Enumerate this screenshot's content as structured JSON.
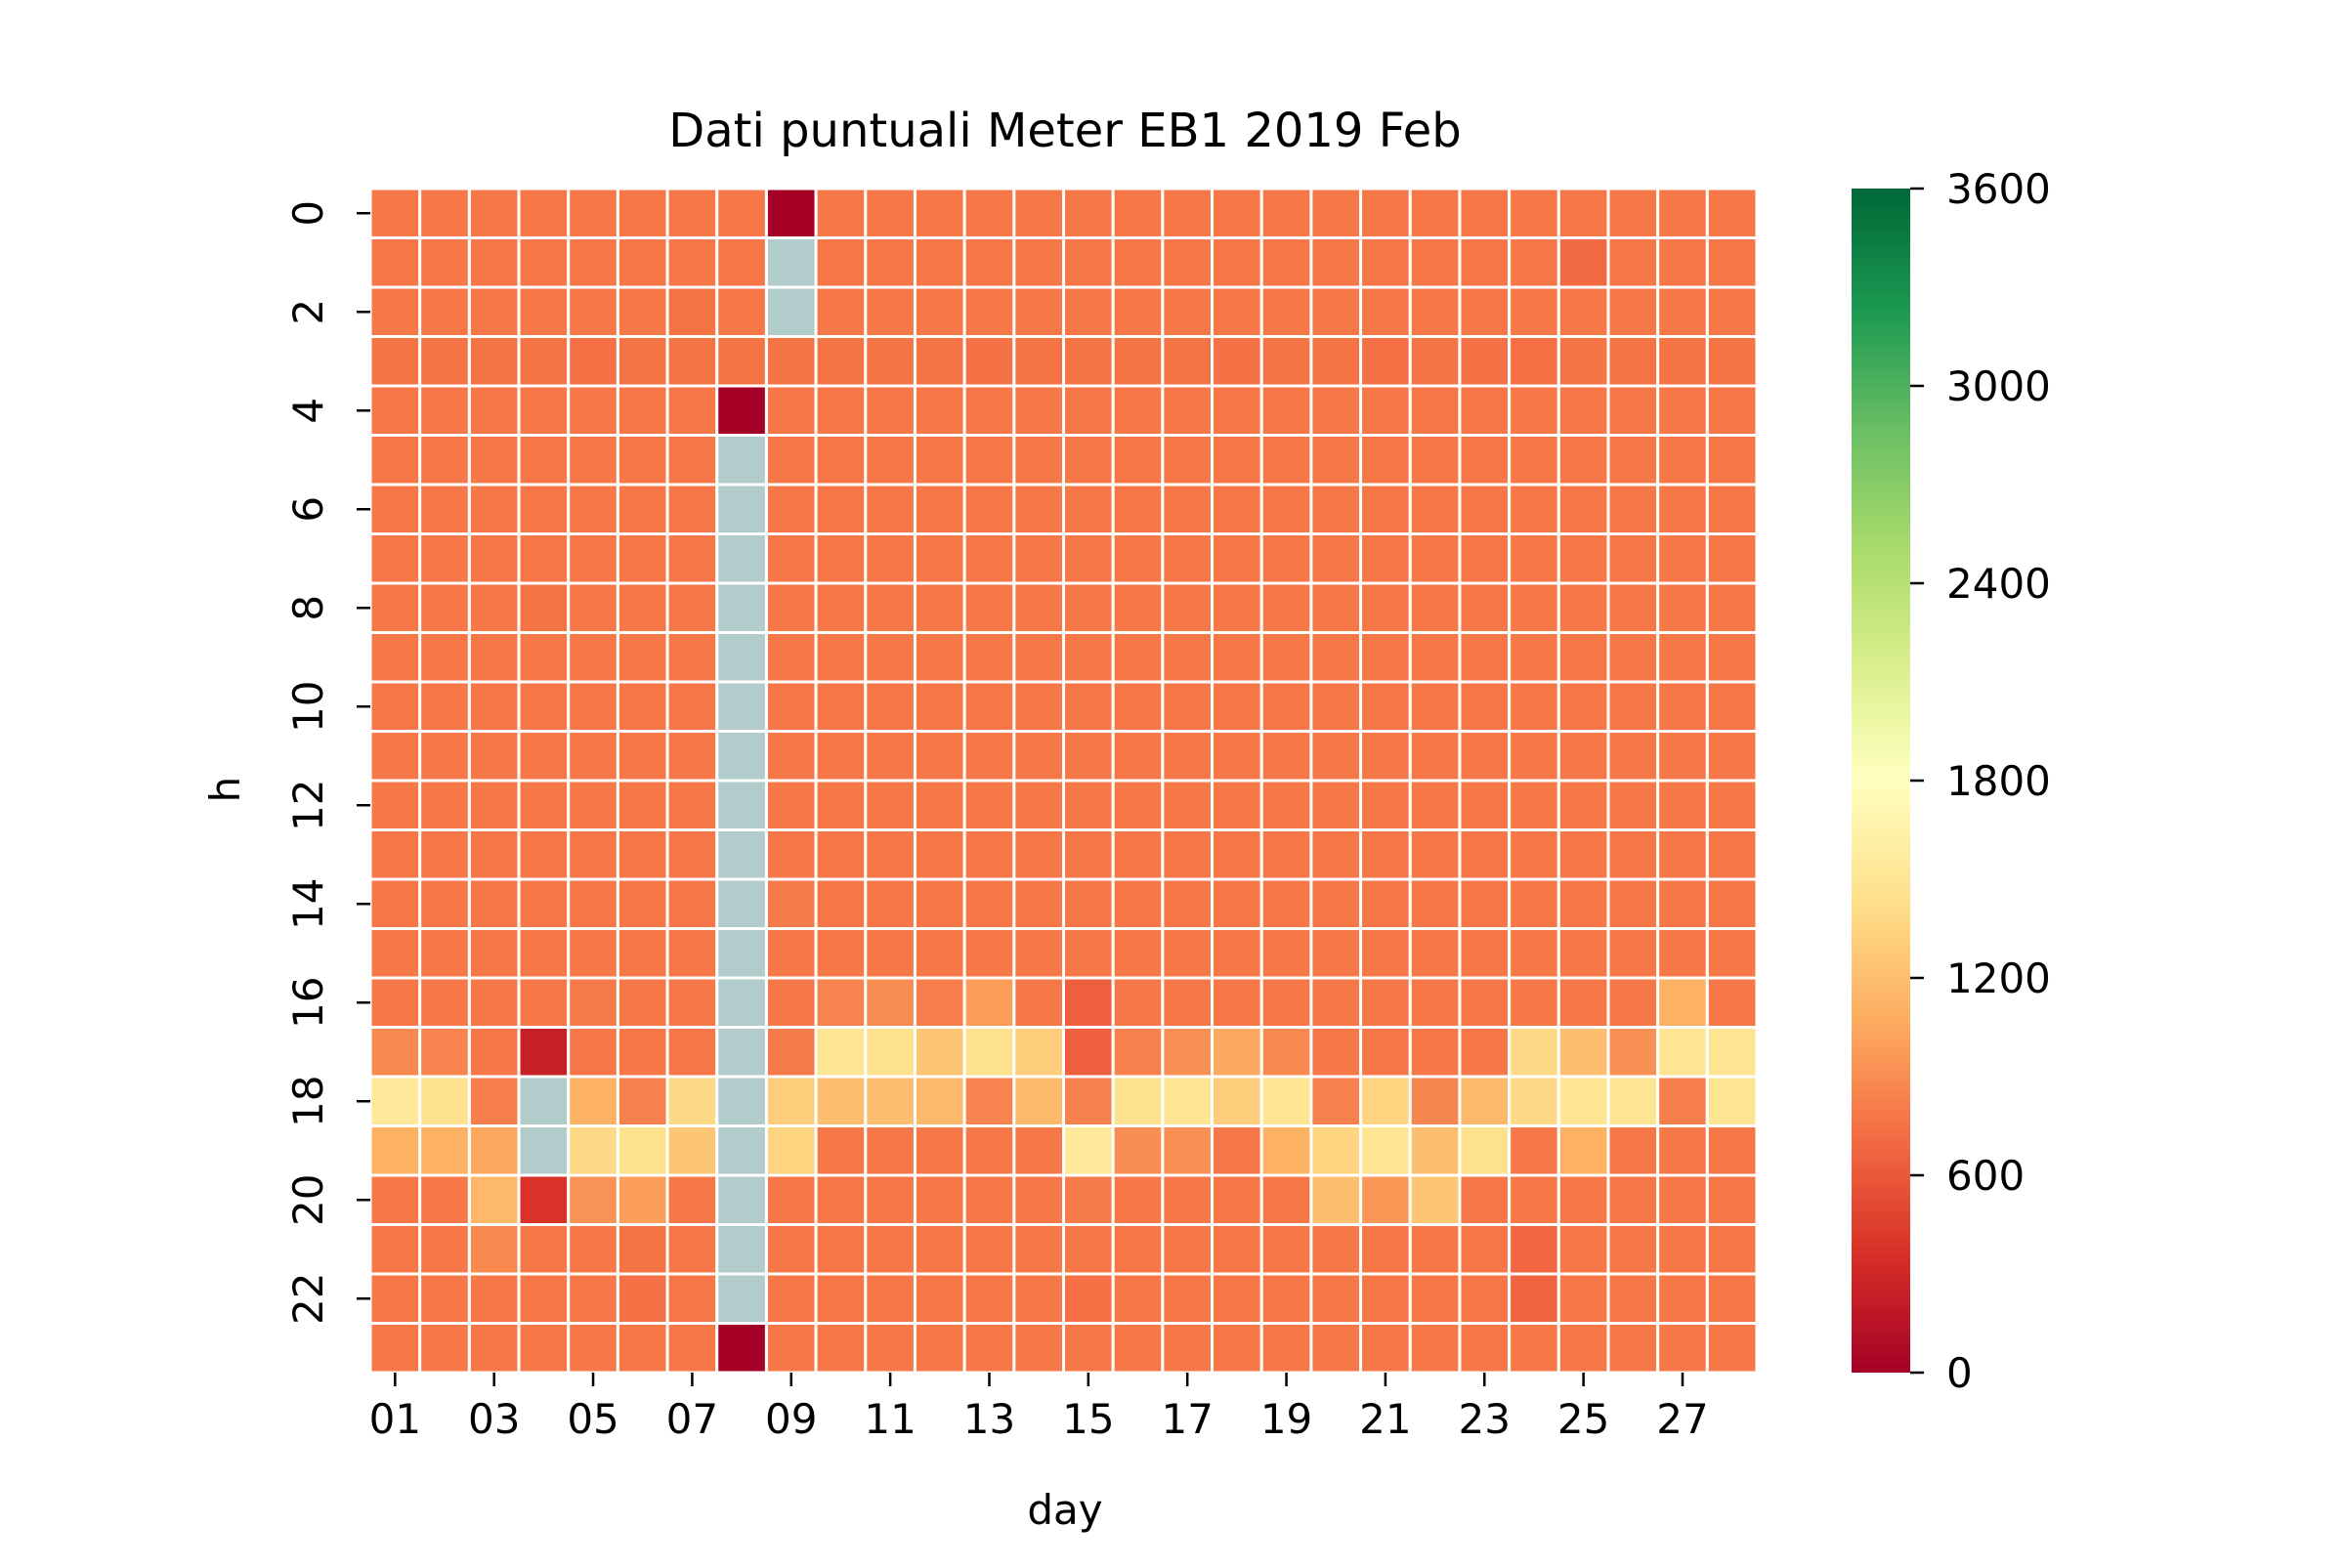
{
  "chart_data": {
    "type": "heatmap",
    "title": "Dati puntuali Meter EB1 2019 Feb",
    "xlabel": "day",
    "ylabel": "h",
    "x_categories": [
      "01",
      "02",
      "03",
      "04",
      "05",
      "06",
      "07",
      "08",
      "09",
      "10",
      "11",
      "12",
      "13",
      "14",
      "15",
      "16",
      "17",
      "18",
      "19",
      "20",
      "21",
      "22",
      "23",
      "24",
      "25",
      "26",
      "27",
      "28"
    ],
    "x_tick_labels": [
      "01",
      "03",
      "05",
      "07",
      "09",
      "11",
      "13",
      "15",
      "17",
      "19",
      "21",
      "23",
      "25",
      "27"
    ],
    "y_categories": [
      0,
      1,
      2,
      3,
      4,
      5,
      6,
      7,
      8,
      9,
      10,
      11,
      12,
      13,
      14,
      15,
      16,
      17,
      18,
      19,
      20,
      21,
      22,
      23
    ],
    "y_tick_labels": [
      "0",
      "2",
      "4",
      "6",
      "8",
      "10",
      "12",
      "14",
      "16",
      "18",
      "20",
      "22"
    ],
    "colorbar": {
      "colormap": "RdYlGn",
      "vmin": 0,
      "vmax": 3600,
      "ticks": [
        "0",
        "600",
        "1200",
        "1800",
        "2400",
        "3000",
        "3600"
      ]
    },
    "missing_color": "#b2cbcb",
    "grid_line_color": "#ffffff",
    "values": [
      [
        780,
        780,
        780,
        780,
        780,
        780,
        780,
        780,
        0,
        780,
        780,
        780,
        780,
        780,
        780,
        780,
        780,
        780,
        780,
        780,
        780,
        780,
        780,
        780,
        780,
        780,
        780,
        780
      ],
      [
        780,
        780,
        780,
        780,
        780,
        780,
        780,
        780,
        null,
        780,
        780,
        780,
        780,
        780,
        780,
        780,
        780,
        780,
        780,
        780,
        780,
        780,
        780,
        780,
        700,
        780,
        780,
        780
      ],
      [
        780,
        780,
        780,
        780,
        780,
        780,
        760,
        780,
        null,
        780,
        780,
        780,
        780,
        780,
        780,
        780,
        780,
        780,
        780,
        780,
        780,
        780,
        780,
        780,
        780,
        780,
        780,
        780
      ],
      [
        760,
        760,
        760,
        760,
        740,
        760,
        760,
        760,
        760,
        760,
        760,
        760,
        750,
        760,
        760,
        760,
        760,
        750,
        760,
        760,
        740,
        760,
        750,
        730,
        760,
        760,
        760,
        760
      ],
      [
        780,
        780,
        780,
        780,
        780,
        780,
        780,
        0,
        780,
        780,
        780,
        780,
        780,
        780,
        770,
        780,
        780,
        780,
        780,
        780,
        780,
        770,
        780,
        780,
        780,
        780,
        780,
        780
      ],
      [
        780,
        780,
        780,
        780,
        780,
        780,
        780,
        null,
        780,
        780,
        780,
        780,
        780,
        780,
        780,
        780,
        780,
        780,
        780,
        780,
        780,
        780,
        780,
        780,
        780,
        780,
        780,
        780
      ],
      [
        780,
        780,
        780,
        780,
        780,
        780,
        780,
        null,
        780,
        780,
        780,
        780,
        780,
        780,
        780,
        780,
        780,
        780,
        780,
        780,
        780,
        780,
        780,
        780,
        780,
        780,
        780,
        780
      ],
      [
        780,
        780,
        780,
        770,
        780,
        780,
        780,
        null,
        780,
        780,
        780,
        780,
        780,
        780,
        780,
        780,
        780,
        780,
        780,
        780,
        780,
        780,
        780,
        780,
        780,
        780,
        780,
        780
      ],
      [
        780,
        780,
        780,
        760,
        780,
        780,
        780,
        null,
        780,
        780,
        780,
        780,
        780,
        780,
        780,
        780,
        780,
        780,
        780,
        780,
        780,
        780,
        780,
        780,
        780,
        780,
        780,
        780
      ],
      [
        780,
        780,
        780,
        780,
        780,
        780,
        780,
        null,
        780,
        780,
        780,
        780,
        780,
        780,
        780,
        780,
        780,
        780,
        780,
        780,
        780,
        780,
        780,
        780,
        770,
        780,
        780,
        780
      ],
      [
        780,
        780,
        780,
        780,
        780,
        780,
        780,
        null,
        780,
        780,
        780,
        780,
        780,
        780,
        780,
        780,
        780,
        780,
        780,
        780,
        780,
        780,
        780,
        780,
        780,
        780,
        780,
        780
      ],
      [
        780,
        780,
        780,
        780,
        780,
        780,
        780,
        null,
        780,
        780,
        780,
        780,
        780,
        780,
        780,
        780,
        780,
        780,
        780,
        780,
        780,
        780,
        780,
        780,
        780,
        780,
        780,
        780
      ],
      [
        780,
        780,
        780,
        780,
        780,
        780,
        780,
        null,
        780,
        780,
        780,
        780,
        780,
        780,
        780,
        780,
        780,
        780,
        780,
        780,
        780,
        780,
        780,
        780,
        780,
        780,
        780,
        780
      ],
      [
        780,
        780,
        780,
        780,
        780,
        780,
        780,
        null,
        780,
        780,
        780,
        780,
        780,
        780,
        780,
        780,
        780,
        780,
        780,
        780,
        780,
        780,
        780,
        780,
        780,
        780,
        780,
        780
      ],
      [
        780,
        780,
        780,
        780,
        780,
        780,
        780,
        null,
        800,
        780,
        780,
        780,
        780,
        780,
        780,
        780,
        780,
        780,
        780,
        780,
        780,
        780,
        780,
        780,
        780,
        780,
        780,
        780
      ],
      [
        780,
        780,
        780,
        780,
        780,
        780,
        780,
        null,
        780,
        780,
        780,
        780,
        780,
        780,
        780,
        780,
        780,
        780,
        780,
        780,
        780,
        780,
        780,
        780,
        780,
        780,
        780,
        780
      ],
      [
        780,
        780,
        780,
        780,
        790,
        780,
        780,
        null,
        780,
        850,
        900,
        820,
        980,
        780,
        640,
        780,
        780,
        780,
        780,
        780,
        780,
        780,
        780,
        780,
        780,
        780,
        1100,
        780
      ],
      [
        880,
        850,
        780,
        240,
        780,
        780,
        780,
        null,
        800,
        1500,
        1450,
        1250,
        1450,
        1300,
        640,
        830,
        920,
        1050,
        880,
        780,
        780,
        780,
        780,
        1400,
        1200,
        920,
        1500,
        1500
      ],
      [
        1550,
        1450,
        820,
        null,
        1100,
        830,
        1400,
        null,
        1300,
        1200,
        1200,
        1150,
        850,
        1150,
        830,
        1450,
        1500,
        1300,
        1500,
        830,
        1350,
        860,
        1150,
        1400,
        1500,
        1500,
        820,
        1500
      ],
      [
        1100,
        1100,
        1050,
        null,
        1400,
        1450,
        1250,
        null,
        1350,
        780,
        780,
        780,
        780,
        780,
        1550,
        900,
        920,
        780,
        1100,
        1350,
        1500,
        1200,
        1450,
        780,
        1100,
        780,
        780,
        780
      ],
      [
        780,
        780,
        1150,
        380,
        930,
        990,
        780,
        null,
        780,
        780,
        780,
        780,
        780,
        780,
        800,
        780,
        780,
        780,
        780,
        1200,
        950,
        1250,
        780,
        780,
        780,
        780,
        780,
        780
      ],
      [
        780,
        780,
        880,
        780,
        780,
        760,
        780,
        null,
        780,
        780,
        780,
        780,
        780,
        780,
        780,
        770,
        780,
        780,
        780,
        780,
        780,
        780,
        780,
        680,
        780,
        780,
        780,
        780
      ],
      [
        780,
        780,
        780,
        780,
        780,
        740,
        780,
        null,
        780,
        780,
        780,
        780,
        780,
        780,
        740,
        780,
        780,
        780,
        780,
        780,
        780,
        780,
        780,
        660,
        780,
        780,
        780,
        780
      ],
      [
        780,
        780,
        780,
        780,
        780,
        780,
        780,
        0,
        780,
        780,
        780,
        780,
        780,
        780,
        780,
        780,
        780,
        780,
        780,
        780,
        780,
        780,
        780,
        780,
        780,
        780,
        780,
        780
      ]
    ]
  }
}
